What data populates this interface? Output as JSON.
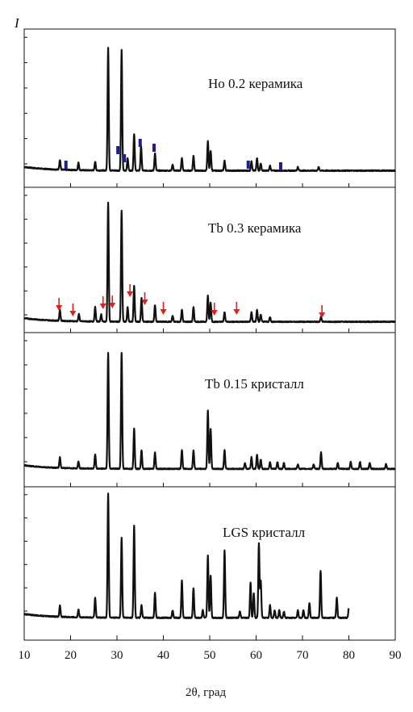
{
  "chart_data": {
    "type": "line",
    "xlabel": "2θ, град",
    "ylabel": "I",
    "xlim": [
      10,
      90
    ],
    "xticks": [
      10,
      20,
      30,
      40,
      50,
      60,
      70,
      80,
      90
    ],
    "colors": {
      "line": "#111111",
      "bar_marker": "#1f1f8a",
      "arrow": "#e02020"
    },
    "panels": [
      {
        "title": "Ho 0.2 керамика",
        "baseline": 0.05,
        "peaks": [
          [
            17.7,
            0.08
          ],
          [
            21.7,
            0.06
          ],
          [
            25.3,
            0.07
          ],
          [
            28.1,
            1.0
          ],
          [
            31.0,
            0.98
          ],
          [
            32.3,
            0.1
          ],
          [
            33.7,
            0.3
          ],
          [
            35.2,
            0.2
          ],
          [
            38.2,
            0.14
          ],
          [
            42.0,
            0.05
          ],
          [
            44.0,
            0.1
          ],
          [
            46.5,
            0.12
          ],
          [
            49.6,
            0.24
          ],
          [
            50.2,
            0.16
          ],
          [
            53.2,
            0.08
          ],
          [
            59.0,
            0.08
          ],
          [
            60.2,
            0.1
          ],
          [
            61.0,
            0.06
          ],
          [
            63.0,
            0.04
          ],
          [
            69.0,
            0.03
          ],
          [
            73.5,
            0.03
          ]
        ],
        "markers_bars": [
          19.0,
          30.2,
          31.6,
          35.0,
          38.0,
          58.3,
          65.3
        ]
      },
      {
        "title": "Tb 0.3 керамика",
        "baseline": 0.05,
        "peaks": [
          [
            17.7,
            0.09
          ],
          [
            21.8,
            0.06
          ],
          [
            25.3,
            0.12
          ],
          [
            26.6,
            0.06
          ],
          [
            28.1,
            1.0
          ],
          [
            31.0,
            0.93
          ],
          [
            32.3,
            0.12
          ],
          [
            33.7,
            0.3
          ],
          [
            35.3,
            0.2
          ],
          [
            38.2,
            0.14
          ],
          [
            42.0,
            0.05
          ],
          [
            44.0,
            0.1
          ],
          [
            46.5,
            0.12
          ],
          [
            49.6,
            0.22
          ],
          [
            50.2,
            0.16
          ],
          [
            53.2,
            0.08
          ],
          [
            59.0,
            0.08
          ],
          [
            60.2,
            0.1
          ],
          [
            61.0,
            0.06
          ],
          [
            63.0,
            0.04
          ],
          [
            74.0,
            0.04
          ]
        ],
        "markers_arrows": [
          17.5,
          20.5,
          27.0,
          29.0,
          32.8,
          36.0,
          40.0,
          51.0,
          55.8,
          74.2
        ]
      },
      {
        "title": "Tb 0.15 кристалл",
        "baseline": 0.05,
        "peaks": [
          [
            17.7,
            0.09
          ],
          [
            21.7,
            0.06
          ],
          [
            25.3,
            0.12
          ],
          [
            28.1,
            1.0
          ],
          [
            31.0,
            1.0
          ],
          [
            33.7,
            0.35
          ],
          [
            35.3,
            0.16
          ],
          [
            38.2,
            0.14
          ],
          [
            44.0,
            0.16
          ],
          [
            46.5,
            0.16
          ],
          [
            49.6,
            0.5
          ],
          [
            50.2,
            0.34
          ],
          [
            53.2,
            0.16
          ],
          [
            57.6,
            0.05
          ],
          [
            59.0,
            0.1
          ],
          [
            60.2,
            0.12
          ],
          [
            61.0,
            0.08
          ],
          [
            63.0,
            0.06
          ],
          [
            64.6,
            0.06
          ],
          [
            66.0,
            0.05
          ],
          [
            69.0,
            0.04
          ],
          [
            72.4,
            0.04
          ],
          [
            74.0,
            0.14
          ],
          [
            77.6,
            0.05
          ],
          [
            80.4,
            0.06
          ],
          [
            82.4,
            0.06
          ],
          [
            84.5,
            0.05
          ],
          [
            88.0,
            0.04
          ]
        ]
      },
      {
        "title": "LGS кристалл",
        "baseline": 0.05,
        "peaks": [
          [
            17.7,
            0.09
          ],
          [
            21.7,
            0.06
          ],
          [
            25.3,
            0.16
          ],
          [
            28.1,
            1.0
          ],
          [
            31.0,
            0.64
          ],
          [
            33.7,
            0.74
          ],
          [
            35.3,
            0.1
          ],
          [
            38.2,
            0.2
          ],
          [
            42.0,
            0.06
          ],
          [
            44.0,
            0.3
          ],
          [
            46.5,
            0.24
          ],
          [
            48.5,
            0.06
          ],
          [
            49.6,
            0.5
          ],
          [
            50.2,
            0.34
          ],
          [
            53.2,
            0.54
          ],
          [
            56.5,
            0.05
          ],
          [
            58.8,
            0.28
          ],
          [
            59.5,
            0.2
          ],
          [
            60.6,
            0.6
          ],
          [
            61.0,
            0.3
          ],
          [
            63.0,
            0.1
          ],
          [
            64.0,
            0.06
          ],
          [
            65.0,
            0.06
          ],
          [
            66.0,
            0.05
          ],
          [
            69.0,
            0.06
          ],
          [
            70.2,
            0.06
          ],
          [
            71.5,
            0.12
          ],
          [
            73.9,
            0.38
          ],
          [
            77.4,
            0.16
          ],
          [
            80.0,
            0.08
          ]
        ],
        "x_end": 80
      }
    ]
  }
}
